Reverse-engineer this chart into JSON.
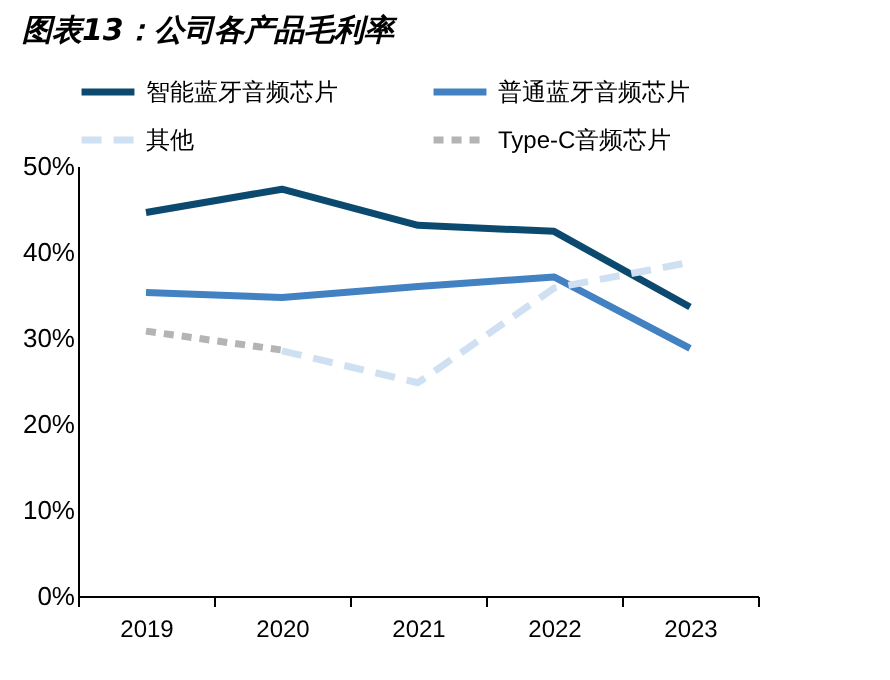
{
  "chart_data": {
    "type": "line",
    "title": "图表13：公司各产品毛利率",
    "categories": [
      "2019",
      "2020",
      "2021",
      "2022",
      "2023"
    ],
    "series": [
      {
        "name": "智能蓝牙音频芯片",
        "color": "#0b4a6e",
        "line_style": "solid",
        "values": [
          44.6,
          47.3,
          43.1,
          42.4,
          33.6
        ]
      },
      {
        "name": "普通蓝牙音频芯片",
        "color": "#4281c2",
        "line_style": "solid",
        "values": [
          35.3,
          34.7,
          36.0,
          37.1,
          28.8
        ]
      },
      {
        "name": "其他",
        "color": "#cfe0f2",
        "line_style": "dashed",
        "values": [
          null,
          28.5,
          24.8,
          35.8,
          38.8
        ]
      },
      {
        "name": "Type-C音频芯片",
        "color": "#b4b4b4",
        "line_style": "dotted",
        "values": [
          30.8,
          28.6,
          null,
          null,
          null
        ]
      }
    ],
    "ylim": [
      0,
      50
    ],
    "yticks": [
      {
        "value": 0,
        "label": "0%"
      },
      {
        "value": 10,
        "label": "10%"
      },
      {
        "value": 20,
        "label": "20%"
      },
      {
        "value": 30,
        "label": "30%"
      },
      {
        "value": 40,
        "label": "40%"
      },
      {
        "value": 50,
        "label": "50%"
      }
    ],
    "grid": false,
    "legend": "top",
    "marker": "none"
  }
}
